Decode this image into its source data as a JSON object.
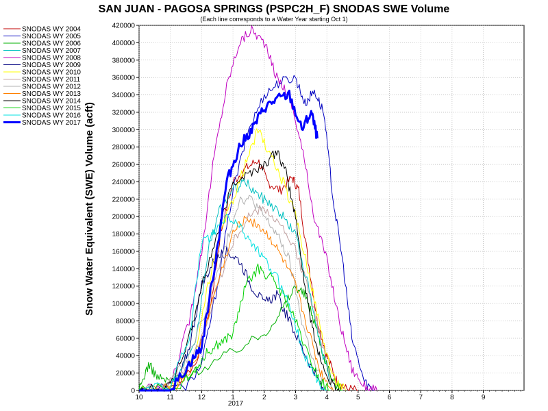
{
  "chart_data": {
    "type": "line",
    "title": "SAN JUAN - PAGOSA SPRINGS (PSPC2H_F) SNODAS SWE Volume",
    "subtitle": "(Each line corresponds to a Water Year starting Oct 1)",
    "ylabel": "Snow Water Equivalent (SWE) Volume (acft)",
    "xlabel": "",
    "year_label": "2017",
    "ylim": [
      0,
      420000
    ],
    "yticks": [
      0,
      20000,
      40000,
      60000,
      80000,
      100000,
      120000,
      140000,
      160000,
      180000,
      200000,
      220000,
      240000,
      260000,
      280000,
      300000,
      320000,
      340000,
      360000,
      380000,
      400000,
      420000
    ],
    "ytick_labels": [
      "0",
      "20000",
      "40000",
      "60000",
      "80000",
      "100000",
      "120000",
      "140000",
      "160000",
      "180000",
      "200000",
      "220000",
      "240000",
      "260000",
      "280000",
      "300000",
      "320000",
      "340000",
      "360000",
      "380000",
      "400000",
      "420000"
    ],
    "xlim": [
      10.0,
      10.97
    ],
    "xticks": [
      10,
      11,
      12,
      1,
      2,
      3,
      4,
      5,
      6,
      7,
      8,
      9
    ],
    "xtick_labels": [
      "10",
      "11",
      "12",
      "1",
      "2",
      "3",
      "4",
      "5",
      "6",
      "7",
      "8",
      "9"
    ],
    "x_unit": "months since Oct 1 (0 = Oct 1)",
    "x_range_months": [
      0,
      12.3
    ],
    "grid": true,
    "legend_position": "left",
    "series": [
      {
        "name": "SNODAS WY 2004",
        "color": "#c00000",
        "width": 1,
        "x": [
          0,
          1,
          1.8,
          2.3,
          2.6,
          3.0,
          3.4,
          3.8,
          4.1,
          4.5,
          4.9,
          5.1,
          5.4,
          5.7,
          6.0,
          6.3,
          6.6,
          7.0
        ],
        "y": [
          0,
          2000,
          30000,
          100000,
          180000,
          240000,
          255000,
          265000,
          240000,
          230000,
          245000,
          230000,
          150000,
          80000,
          40000,
          12000,
          2000,
          0
        ]
      },
      {
        "name": "SNODAS WY 2005",
        "color": "#0000c0",
        "width": 1,
        "x": [
          0,
          1.5,
          2.0,
          2.5,
          3.0,
          3.5,
          4.0,
          4.5,
          5.0,
          5.3,
          5.6,
          5.9,
          6.2,
          6.5,
          6.8,
          7.2,
          7.5
        ],
        "y": [
          0,
          3000,
          30000,
          120000,
          230000,
          300000,
          340000,
          355000,
          360000,
          330000,
          345000,
          320000,
          220000,
          150000,
          60000,
          10000,
          0
        ]
      },
      {
        "name": "SNODAS WY 2006",
        "color": "#00b000",
        "width": 1,
        "x": [
          0,
          0.3,
          0.6,
          1.0,
          2.0,
          3.0,
          4.0,
          4.6,
          5.0,
          5.3,
          5.6,
          5.9,
          6.2,
          6.5
        ],
        "y": [
          0,
          30000,
          15000,
          10000,
          25000,
          45000,
          65000,
          95000,
          120000,
          110000,
          80000,
          40000,
          10000,
          0
        ]
      },
      {
        "name": "SNODAS WY 2007",
        "color": "#00c0c0",
        "width": 1,
        "x": [
          0,
          1.0,
          1.8,
          2.2,
          2.6,
          3.0,
          3.4,
          3.8,
          4.2,
          4.6,
          5.0,
          5.4,
          5.8,
          6.2
        ],
        "y": [
          0,
          5000,
          50000,
          160000,
          210000,
          230000,
          240000,
          225000,
          215000,
          200000,
          180000,
          120000,
          50000,
          0
        ]
      },
      {
        "name": "SNODAS WY 2008",
        "color": "#c000c0",
        "width": 1,
        "x": [
          0,
          1.0,
          1.6,
          2.0,
          2.4,
          2.8,
          3.2,
          3.6,
          4.0,
          4.4,
          4.8,
          5.2,
          5.6,
          6.0,
          6.4,
          6.8,
          7.2,
          7.6
        ],
        "y": [
          0,
          5000,
          80000,
          160000,
          270000,
          350000,
          400000,
          415000,
          400000,
          360000,
          340000,
          280000,
          200000,
          150000,
          80000,
          25000,
          5000,
          0
        ]
      },
      {
        "name": "SNODAS WY 2009",
        "color": "#000080",
        "width": 1,
        "x": [
          0,
          1.2,
          1.6,
          2.0,
          2.4,
          2.8,
          3.2,
          3.6,
          4.0,
          4.4,
          4.8,
          5.2,
          5.6,
          5.9
        ],
        "y": [
          0,
          4000,
          50000,
          120000,
          150000,
          160000,
          150000,
          120000,
          100000,
          110000,
          80000,
          50000,
          20000,
          0
        ]
      },
      {
        "name": "SNODAS WY 2010",
        "color": "#ffff00",
        "width": 1,
        "x": [
          0,
          1.2,
          1.8,
          2.2,
          2.6,
          3.0,
          3.4,
          3.8,
          4.2,
          4.6,
          5.0,
          5.4,
          5.8,
          6.2,
          6.6
        ],
        "y": [
          0,
          4000,
          40000,
          120000,
          180000,
          220000,
          260000,
          300000,
          270000,
          240000,
          200000,
          140000,
          70000,
          15000,
          0
        ]
      },
      {
        "name": "SNODAS WY 2011",
        "color": "#c0a0a0",
        "width": 1,
        "x": [
          0,
          1.0,
          1.6,
          2.0,
          2.5,
          3.0,
          3.5,
          4.0,
          4.5,
          5.0,
          5.4,
          5.8,
          6.2
        ],
        "y": [
          0,
          10000,
          30000,
          60000,
          120000,
          170000,
          200000,
          210000,
          190000,
          160000,
          120000,
          60000,
          0
        ]
      },
      {
        "name": "SNODAS WY 2012",
        "color": "#b0b0b0",
        "width": 1,
        "x": [
          0,
          1.0,
          1.6,
          2.2,
          2.8,
          3.2,
          3.6,
          4.0,
          4.4,
          4.8,
          5.2,
          5.6,
          6.0
        ],
        "y": [
          0,
          8000,
          40000,
          100000,
          170000,
          220000,
          220000,
          200000,
          180000,
          150000,
          80000,
          30000,
          0
        ]
      },
      {
        "name": "SNODAS WY 2013",
        "color": "#ff8000",
        "width": 1,
        "x": [
          0,
          1.2,
          1.8,
          2.4,
          3.0,
          3.4,
          3.8,
          4.2,
          4.6,
          5.0,
          5.4,
          5.8,
          6.2
        ],
        "y": [
          0,
          5000,
          30000,
          110000,
          180000,
          200000,
          190000,
          175000,
          150000,
          120000,
          70000,
          20000,
          0
        ]
      },
      {
        "name": "SNODAS WY 2014",
        "color": "#000000",
        "width": 1,
        "x": [
          0,
          1.0,
          1.6,
          2.0,
          2.5,
          3.0,
          3.5,
          4.0,
          4.4,
          4.7,
          5.0,
          5.3,
          5.6,
          6.0,
          6.4
        ],
        "y": [
          0,
          5000,
          60000,
          120000,
          180000,
          240000,
          250000,
          260000,
          275000,
          250000,
          200000,
          120000,
          60000,
          15000,
          0
        ]
      },
      {
        "name": "SNODAS WY 2015",
        "color": "#00d000",
        "width": 1,
        "x": [
          0,
          1.2,
          1.8,
          2.2,
          2.6,
          3.0,
          3.4,
          3.8,
          4.2,
          4.6,
          5.0,
          5.4,
          5.8,
          6.1
        ],
        "y": [
          0,
          3000,
          25000,
          45000,
          55000,
          65000,
          120000,
          140000,
          130000,
          110000,
          80000,
          40000,
          10000,
          0
        ]
      },
      {
        "name": "SNODAS WY 2016",
        "color": "#00e0e0",
        "width": 1,
        "x": [
          0,
          1.0,
          1.6,
          2.0,
          2.4,
          2.8,
          3.2,
          3.6,
          4.0,
          4.4,
          4.8,
          5.2,
          5.6,
          6.0
        ],
        "y": [
          0,
          5000,
          60000,
          170000,
          180000,
          200000,
          190000,
          170000,
          150000,
          130000,
          100000,
          50000,
          15000,
          0
        ]
      },
      {
        "name": "SNODAS WY 2017",
        "color": "#0000ff",
        "width": 3,
        "x": [
          0,
          1.0,
          1.6,
          2.0,
          2.4,
          2.8,
          3.2,
          3.6,
          4.0,
          4.4,
          4.8,
          5.2,
          5.5,
          5.7
        ],
        "y": [
          0,
          0,
          30000,
          50000,
          140000,
          240000,
          280000,
          300000,
          325000,
          335000,
          340000,
          300000,
          320000,
          290000
        ]
      }
    ]
  }
}
